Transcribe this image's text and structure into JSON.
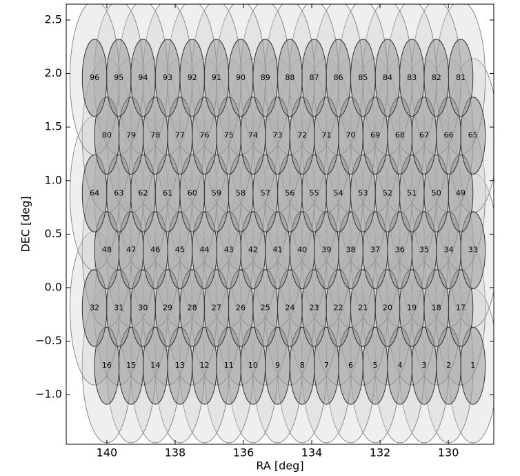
{
  "chart_data": {
    "type": "scatter",
    "xlabel": "RA  [deg]",
    "ylabel": "DEC [deg]",
    "xlim": [
      141.19,
      128.67
    ],
    "ylim": [
      -1.463,
      2.648
    ],
    "xticks": [
      140,
      138,
      136,
      134,
      132,
      130
    ],
    "yticks": [
      {
        "value": -1.0,
        "label": "−1.0"
      },
      {
        "value": -0.5,
        "label": "−0.5"
      },
      {
        "value": 0.0,
        "label": "0.0"
      },
      {
        "value": 0.5,
        "label": "0.5"
      },
      {
        "value": 1.0,
        "label": "1.0"
      },
      {
        "value": 1.5,
        "label": "1.5"
      },
      {
        "value": 2.0,
        "label": "2.0"
      },
      {
        "value": 2.5,
        "label": "2.5"
      }
    ],
    "inner_size": 0.36,
    "outer_size": 0.72,
    "inner_color": "#9a9a9a",
    "outer_color": "#d0d0d0",
    "labels": [
      1,
      2,
      3,
      4,
      5,
      6,
      7,
      8,
      9,
      10,
      11,
      12,
      13,
      14,
      15,
      16,
      17,
      18,
      19,
      20,
      21,
      22,
      23,
      24,
      25,
      26,
      27,
      28,
      29,
      30,
      31,
      32,
      33,
      34,
      35,
      36,
      37,
      38,
      39,
      40,
      41,
      42,
      43,
      44,
      45,
      46,
      47,
      48,
      49,
      50,
      51,
      52,
      53,
      54,
      55,
      56,
      57,
      58,
      59,
      60,
      61,
      62,
      63,
      64,
      65,
      66,
      67,
      68,
      69,
      70,
      71,
      72,
      73,
      74,
      75,
      76,
      77,
      78,
      79,
      80,
      81,
      82,
      83,
      84,
      85,
      86,
      87,
      88,
      89,
      90,
      91,
      92,
      93,
      94,
      95,
      96
    ],
    "x": [
      129.28,
      129.99,
      130.71,
      131.42,
      132.14,
      132.86,
      133.57,
      134.28,
      135.0,
      135.72,
      136.43,
      137.14,
      137.86,
      138.58,
      139.29,
      140.0,
      129.64,
      130.35,
      131.07,
      131.78,
      132.5,
      133.22,
      133.93,
      134.64,
      135.36,
      136.08,
      136.79,
      137.5,
      138.22,
      138.94,
      139.65,
      140.36,
      129.28,
      129.99,
      130.71,
      131.42,
      132.14,
      132.86,
      133.57,
      134.28,
      135.0,
      135.72,
      136.43,
      137.14,
      137.86,
      138.58,
      139.29,
      140.0,
      129.64,
      130.35,
      131.07,
      131.78,
      132.5,
      133.22,
      133.93,
      134.64,
      135.36,
      136.08,
      136.79,
      137.5,
      138.22,
      138.94,
      139.65,
      140.36,
      129.28,
      129.99,
      130.71,
      131.42,
      132.14,
      132.86,
      133.57,
      134.28,
      135.0,
      135.72,
      136.43,
      137.14,
      137.86,
      138.58,
      139.29,
      140.0,
      129.64,
      130.35,
      131.07,
      131.78,
      132.5,
      133.22,
      133.93,
      134.64,
      135.36,
      136.08,
      136.79,
      137.5,
      138.22,
      138.94,
      139.65,
      140.36
    ],
    "y": [
      -0.73,
      -0.73,
      -0.73,
      -0.73,
      -0.73,
      -0.73,
      -0.73,
      -0.73,
      -0.73,
      -0.73,
      -0.73,
      -0.73,
      -0.73,
      -0.73,
      -0.73,
      -0.73,
      -0.19,
      -0.19,
      -0.19,
      -0.19,
      -0.19,
      -0.19,
      -0.19,
      -0.19,
      -0.19,
      -0.19,
      -0.19,
      -0.19,
      -0.19,
      -0.19,
      -0.19,
      -0.19,
      0.35,
      0.35,
      0.35,
      0.35,
      0.35,
      0.35,
      0.35,
      0.35,
      0.35,
      0.35,
      0.35,
      0.35,
      0.35,
      0.35,
      0.35,
      0.35,
      0.88,
      0.88,
      0.88,
      0.88,
      0.88,
      0.88,
      0.88,
      0.88,
      0.88,
      0.88,
      0.88,
      0.88,
      0.88,
      0.88,
      0.88,
      0.88,
      1.42,
      1.42,
      1.42,
      1.42,
      1.42,
      1.42,
      1.42,
      1.42,
      1.42,
      1.42,
      1.42,
      1.42,
      1.42,
      1.42,
      1.42,
      1.42,
      1.96,
      1.96,
      1.96,
      1.96,
      1.96,
      1.96,
      1.96,
      1.96,
      1.96,
      1.96,
      1.96,
      1.96,
      1.96,
      1.96,
      1.96,
      1.96
    ]
  }
}
